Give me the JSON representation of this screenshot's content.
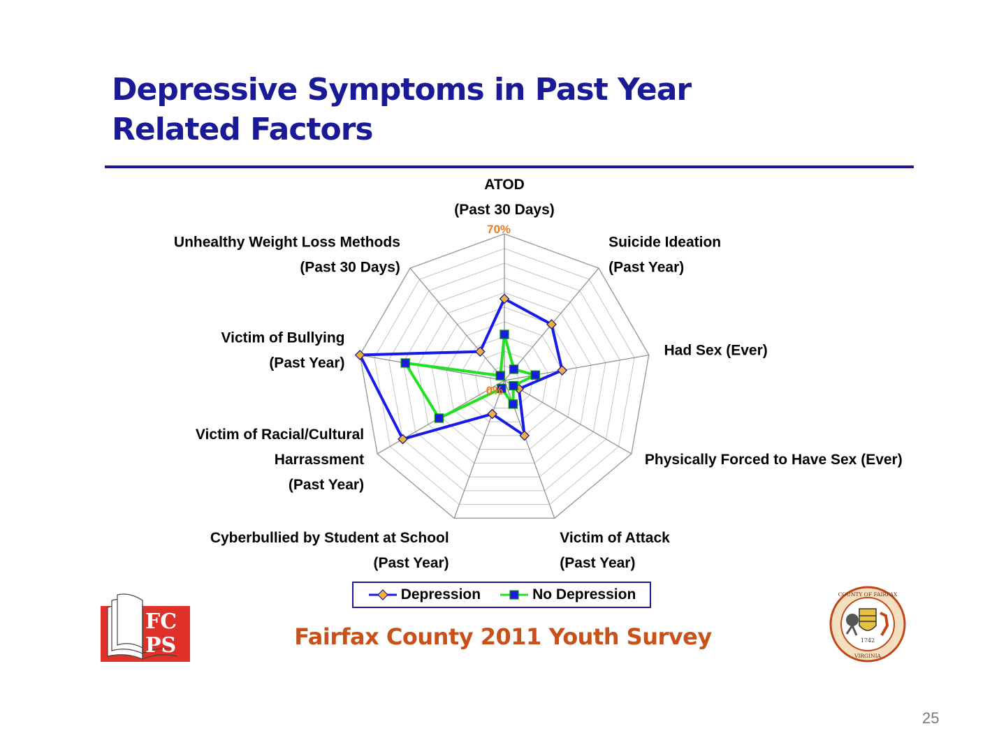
{
  "slide": {
    "title_line1": "Depressive Symptoms in Past Year",
    "title_line2": "Related Factors",
    "footer": "Fairfax County 2011 Youth Survey",
    "page_number": "25"
  },
  "logos": {
    "fcps": "FCPS",
    "seal_top": "COUNTY OF FAIRFAX",
    "seal_bottom": "VIRGINIA",
    "seal_year": "1742"
  },
  "colors": {
    "title": "#1a1a96",
    "depression": "#1a1ae6",
    "depression_marker": "#f0b040",
    "no_depression": "#22e022",
    "no_depression_marker": "#1a1ae6",
    "scale_label": "#f07a1a",
    "footer": "#c8511a"
  },
  "chart_data": {
    "type": "radar",
    "axes": [
      [
        "ATOD",
        "(Past 30 Days)"
      ],
      [
        "Suicide Ideation",
        "(Past Year)"
      ],
      [
        "Had Sex (Ever)"
      ],
      [
        "Physically Forced to Have Sex (Ever)"
      ],
      [
        "Victim of Attack",
        "(Past Year)"
      ],
      [
        "Cyberbullied by Student at School",
        "(Past Year)"
      ],
      [
        "Victim of Racial/Cultural",
        "Harrassment",
        "(Past Year)"
      ],
      [
        "Victim of Bullying",
        "(Past Year)"
      ],
      [
        "Unhealthy Weight Loss Methods",
        "(Past 30 Days)"
      ]
    ],
    "rmin": 0,
    "rmax": 70,
    "ticks": 10,
    "scale_labels": {
      "min": "0%",
      "max": "70%"
    },
    "series": [
      {
        "name": "Depression",
        "values": [
          39,
          35,
          28,
          8,
          28,
          17,
          56,
          70,
          18
        ]
      },
      {
        "name": "No Depression",
        "values": [
          22,
          7,
          15,
          5,
          12,
          4,
          36,
          48,
          3
        ]
      }
    ],
    "legend": "bottom"
  }
}
